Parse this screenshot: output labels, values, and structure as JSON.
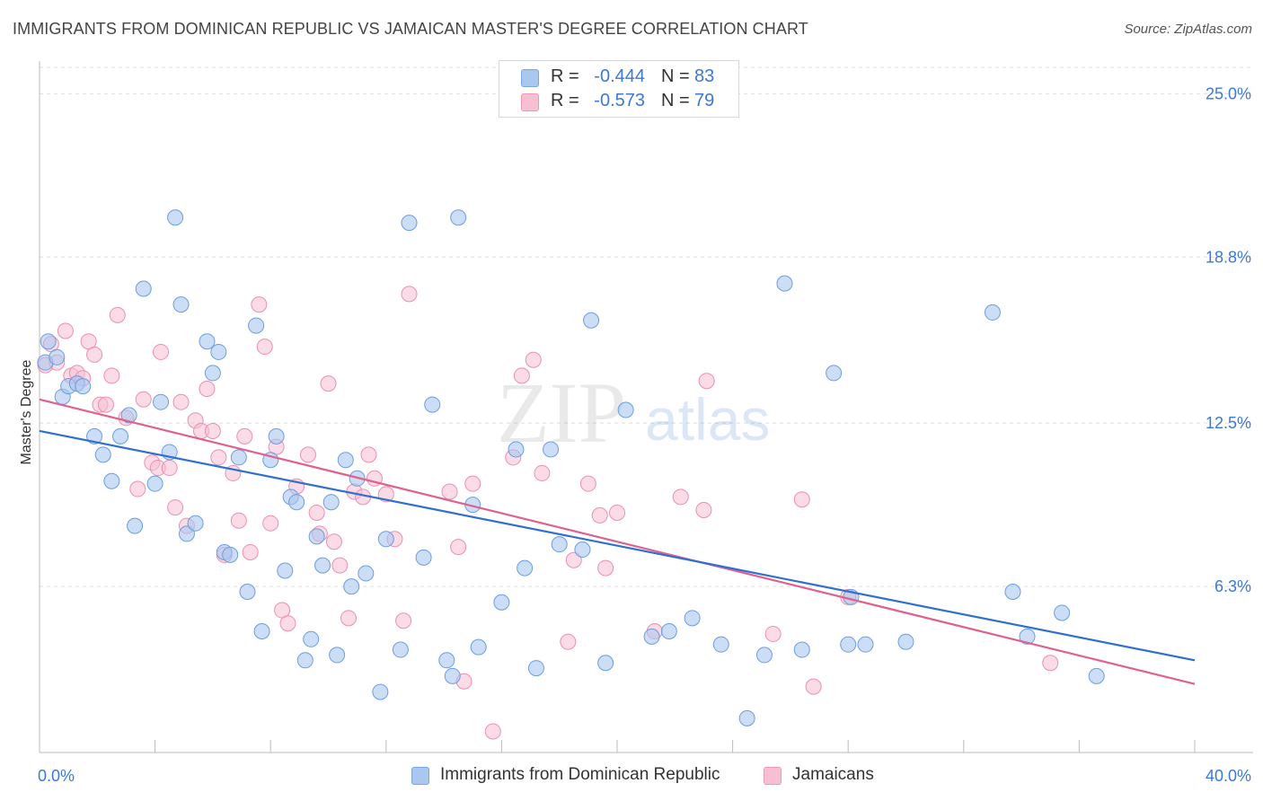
{
  "header": {
    "title": "IMMIGRANTS FROM DOMINICAN REPUBLIC VS JAMAICAN MASTER'S DEGREE CORRELATION CHART",
    "source": "Source: ZipAtlas.com"
  },
  "watermark": {
    "zip": "ZIP",
    "atlas": "atlas"
  },
  "legend_top": {
    "rows": [
      {
        "r_label": "R =",
        "r_value": "-0.444",
        "n_label": "N =",
        "n_value": "83",
        "color": "#aac7f0",
        "border": "#7aa6e6"
      },
      {
        "r_label": "R =",
        "r_value": "-0.573",
        "n_label": "N =",
        "n_value": "79",
        "color": "#f7bfd2",
        "border": "#ee97b6"
      }
    ]
  },
  "legend_bottom": {
    "items": [
      {
        "label": "Immigrants from Dominican Republic",
        "color": "#aac7f0",
        "border": "#7aa6e6"
      },
      {
        "label": "Jamaicans",
        "color": "#f7bfd2",
        "border": "#ee97b6"
      }
    ]
  },
  "chart_data": {
    "type": "scatter",
    "title": "IMMIGRANTS FROM DOMINICAN REPUBLIC VS JAMAICAN MASTER'S DEGREE CORRELATION CHART",
    "ylabel": "Master's Degree",
    "xlabel": "",
    "xlim": [
      0,
      40
    ],
    "ylim": [
      0,
      26
    ],
    "x_tick_labels": [
      "0.0%",
      "40.0%"
    ],
    "y_ticks": [
      6.3,
      12.5,
      18.8,
      25.0
    ],
    "y_tick_labels": [
      "6.3%",
      "12.5%",
      "18.8%",
      "25.0%"
    ],
    "grid": true,
    "legend_position": "top-center",
    "colors": {
      "blue_point": "#aac7f0",
      "blue_edge": "#6b9de3",
      "blue_line": "#2f6fd0",
      "pink_point": "#f7bfd2",
      "pink_edge": "#ea8fb0",
      "pink_line": "#e0608e",
      "tick_label": "#3b78d8"
    },
    "series": [
      {
        "name": "Immigrants from Dominican Republic",
        "color": "#aac7f0",
        "trend": {
          "x": [
            0,
            40
          ],
          "y": [
            12.2,
            3.5
          ]
        },
        "points": [
          [
            0.2,
            14.8
          ],
          [
            0.3,
            15.6
          ],
          [
            0.6,
            15.0
          ],
          [
            0.8,
            13.5
          ],
          [
            1.0,
            13.9
          ],
          [
            1.3,
            14.0
          ],
          [
            1.5,
            13.9
          ],
          [
            1.9,
            12.0
          ],
          [
            2.2,
            11.3
          ],
          [
            2.5,
            10.3
          ],
          [
            2.8,
            12.0
          ],
          [
            3.1,
            12.8
          ],
          [
            3.3,
            8.6
          ],
          [
            3.6,
            17.6
          ],
          [
            4.0,
            10.2
          ],
          [
            4.2,
            13.3
          ],
          [
            4.5,
            11.4
          ],
          [
            4.7,
            20.3
          ],
          [
            4.9,
            17.0
          ],
          [
            5.1,
            8.3
          ],
          [
            5.4,
            8.7
          ],
          [
            5.8,
            15.6
          ],
          [
            6.0,
            14.4
          ],
          [
            6.2,
            15.2
          ],
          [
            6.4,
            7.6
          ],
          [
            6.6,
            7.5
          ],
          [
            6.9,
            11.2
          ],
          [
            7.2,
            6.1
          ],
          [
            7.5,
            16.2
          ],
          [
            7.7,
            4.6
          ],
          [
            8.0,
            11.1
          ],
          [
            8.2,
            12.0
          ],
          [
            8.5,
            6.9
          ],
          [
            8.7,
            9.7
          ],
          [
            8.9,
            9.5
          ],
          [
            9.2,
            3.5
          ],
          [
            9.4,
            4.3
          ],
          [
            9.6,
            8.2
          ],
          [
            9.8,
            7.1
          ],
          [
            10.1,
            9.5
          ],
          [
            10.3,
            3.7
          ],
          [
            10.6,
            11.1
          ],
          [
            10.8,
            6.3
          ],
          [
            11.0,
            10.4
          ],
          [
            11.3,
            6.8
          ],
          [
            11.8,
            2.3
          ],
          [
            12.0,
            8.1
          ],
          [
            12.5,
            3.9
          ],
          [
            12.8,
            20.1
          ],
          [
            13.3,
            7.4
          ],
          [
            13.6,
            13.2
          ],
          [
            14.1,
            3.5
          ],
          [
            14.3,
            2.9
          ],
          [
            14.5,
            20.3
          ],
          [
            15.0,
            9.4
          ],
          [
            15.2,
            4.0
          ],
          [
            16.0,
            5.7
          ],
          [
            16.5,
            11.5
          ],
          [
            16.8,
            7.0
          ],
          [
            17.2,
            3.2
          ],
          [
            17.7,
            11.5
          ],
          [
            18.0,
            7.9
          ],
          [
            18.8,
            7.7
          ],
          [
            19.1,
            16.4
          ],
          [
            19.6,
            3.4
          ],
          [
            20.3,
            13.0
          ],
          [
            21.2,
            4.4
          ],
          [
            21.8,
            4.6
          ],
          [
            22.6,
            5.1
          ],
          [
            23.6,
            4.1
          ],
          [
            24.5,
            1.3
          ],
          [
            25.1,
            3.7
          ],
          [
            25.8,
            17.8
          ],
          [
            26.4,
            3.9
          ],
          [
            27.5,
            14.4
          ],
          [
            28.0,
            4.1
          ],
          [
            28.1,
            5.9
          ],
          [
            28.6,
            4.1
          ],
          [
            30.0,
            4.2
          ],
          [
            33.0,
            16.7
          ],
          [
            33.7,
            6.1
          ],
          [
            34.2,
            4.4
          ],
          [
            35.4,
            5.3
          ],
          [
            36.6,
            2.9
          ]
        ]
      },
      {
        "name": "Jamaicans",
        "color": "#f7bfd2",
        "trend": {
          "x": [
            0,
            40
          ],
          "y": [
            13.4,
            2.6
          ]
        },
        "points": [
          [
            0.2,
            14.7
          ],
          [
            0.4,
            15.5
          ],
          [
            0.6,
            14.8
          ],
          [
            0.9,
            16.0
          ],
          [
            1.1,
            14.3
          ],
          [
            1.3,
            14.4
          ],
          [
            1.5,
            14.2
          ],
          [
            1.7,
            15.6
          ],
          [
            1.9,
            15.1
          ],
          [
            2.1,
            13.2
          ],
          [
            2.3,
            13.2
          ],
          [
            2.5,
            14.3
          ],
          [
            2.7,
            16.6
          ],
          [
            3.0,
            12.7
          ],
          [
            3.4,
            10.0
          ],
          [
            3.6,
            13.4
          ],
          [
            3.9,
            11.0
          ],
          [
            4.1,
            10.8
          ],
          [
            4.2,
            15.2
          ],
          [
            4.5,
            10.8
          ],
          [
            4.7,
            9.3
          ],
          [
            4.9,
            13.3
          ],
          [
            5.1,
            8.6
          ],
          [
            5.4,
            12.6
          ],
          [
            5.6,
            12.2
          ],
          [
            5.8,
            13.8
          ],
          [
            6.0,
            12.2
          ],
          [
            6.2,
            11.2
          ],
          [
            6.4,
            7.5
          ],
          [
            6.7,
            10.6
          ],
          [
            6.9,
            8.8
          ],
          [
            7.1,
            12.0
          ],
          [
            7.3,
            7.6
          ],
          [
            7.6,
            17.0
          ],
          [
            7.8,
            15.4
          ],
          [
            8.0,
            8.7
          ],
          [
            8.2,
            11.6
          ],
          [
            8.4,
            5.4
          ],
          [
            8.6,
            4.9
          ],
          [
            8.9,
            10.1
          ],
          [
            9.3,
            11.3
          ],
          [
            9.6,
            9.1
          ],
          [
            9.7,
            8.3
          ],
          [
            10.0,
            14.0
          ],
          [
            10.2,
            8.0
          ],
          [
            10.4,
            7.1
          ],
          [
            10.7,
            5.1
          ],
          [
            10.9,
            9.9
          ],
          [
            11.2,
            9.7
          ],
          [
            11.4,
            11.3
          ],
          [
            11.6,
            10.4
          ],
          [
            12.0,
            9.8
          ],
          [
            12.3,
            8.1
          ],
          [
            12.6,
            5.0
          ],
          [
            12.8,
            17.4
          ],
          [
            14.2,
            9.9
          ],
          [
            14.5,
            7.8
          ],
          [
            14.7,
            2.7
          ],
          [
            15.0,
            10.2
          ],
          [
            15.7,
            0.8
          ],
          [
            16.4,
            11.2
          ],
          [
            16.7,
            14.3
          ],
          [
            17.1,
            14.9
          ],
          [
            17.4,
            10.6
          ],
          [
            18.3,
            4.2
          ],
          [
            18.5,
            7.3
          ],
          [
            19.0,
            10.2
          ],
          [
            19.4,
            9.0
          ],
          [
            19.6,
            7.0
          ],
          [
            20.0,
            9.1
          ],
          [
            21.3,
            4.6
          ],
          [
            22.2,
            9.7
          ],
          [
            23.0,
            9.2
          ],
          [
            23.1,
            14.1
          ],
          [
            25.4,
            4.5
          ],
          [
            26.4,
            9.6
          ],
          [
            26.8,
            2.5
          ],
          [
            28.0,
            5.9
          ],
          [
            35.0,
            3.4
          ]
        ]
      }
    ]
  }
}
